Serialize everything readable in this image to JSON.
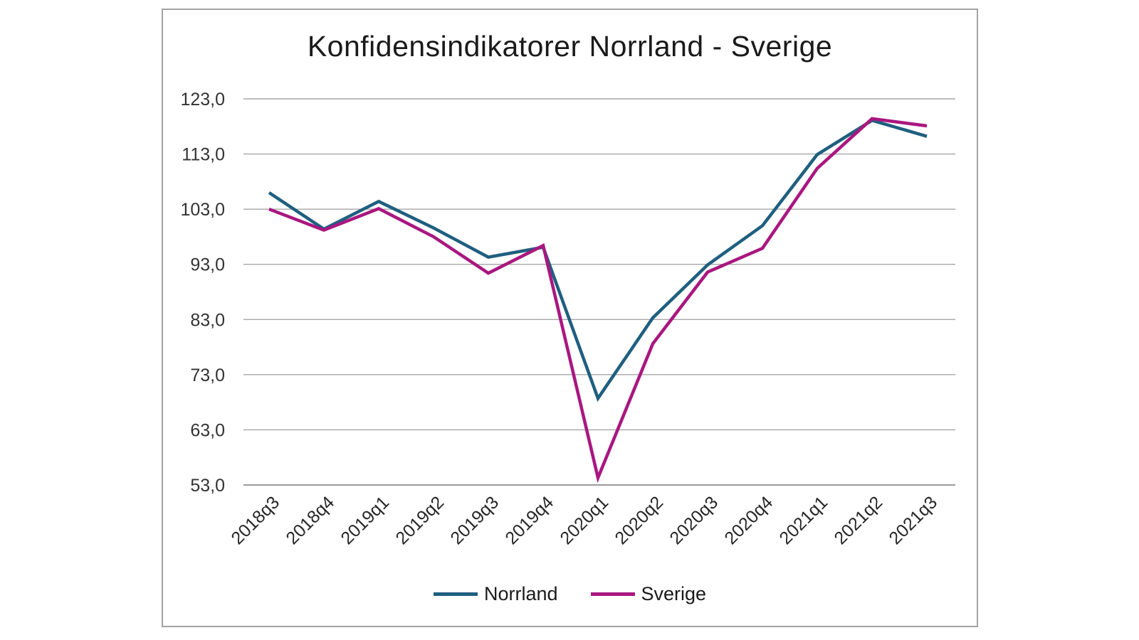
{
  "chart_data": {
    "type": "line",
    "title": "Konfidensindikatorer Norrland - Sverige",
    "categories": [
      "2018q3",
      "2018q4",
      "2019q1",
      "2019q2",
      "2019q3",
      "2019q4",
      "2020q1",
      "2020q2",
      "2020q3",
      "2020q4",
      "2021q1",
      "2021q2",
      "2021q3"
    ],
    "series": [
      {
        "name": "Norrland",
        "color": "#1F5F7F",
        "values": [
          106.0,
          99.4,
          104.4,
          99.6,
          94.3,
          96.1,
          68.7,
          83.3,
          92.9,
          100.0,
          112.9,
          119.1,
          116.2
        ]
      },
      {
        "name": "Sverige",
        "color": "#A91780",
        "values": [
          103.0,
          99.2,
          103.1,
          98.0,
          91.4,
          96.4,
          54.3,
          78.6,
          91.6,
          95.9,
          110.4,
          119.4,
          118.1
        ]
      }
    ],
    "y_ticks": [
      "123,0",
      "113,0",
      "103,0",
      "93,0",
      "83,0",
      "73,0",
      "63,0",
      "53,0"
    ],
    "y_tick_values": [
      123,
      113,
      103,
      93,
      83,
      73,
      63,
      53
    ],
    "ylim": [
      53,
      123
    ],
    "xlabel": "",
    "ylabel": "",
    "grid": "horizontal",
    "legend_position": "bottom",
    "decimal_separator": ","
  },
  "colors": {
    "gridline": "#A6A6A6",
    "axis_line": "#8C8C8C",
    "frame_border": "#A3A3A3",
    "background": "#FFFFFF",
    "title_text": "#1A1A1A",
    "tick_text": "#333333"
  }
}
